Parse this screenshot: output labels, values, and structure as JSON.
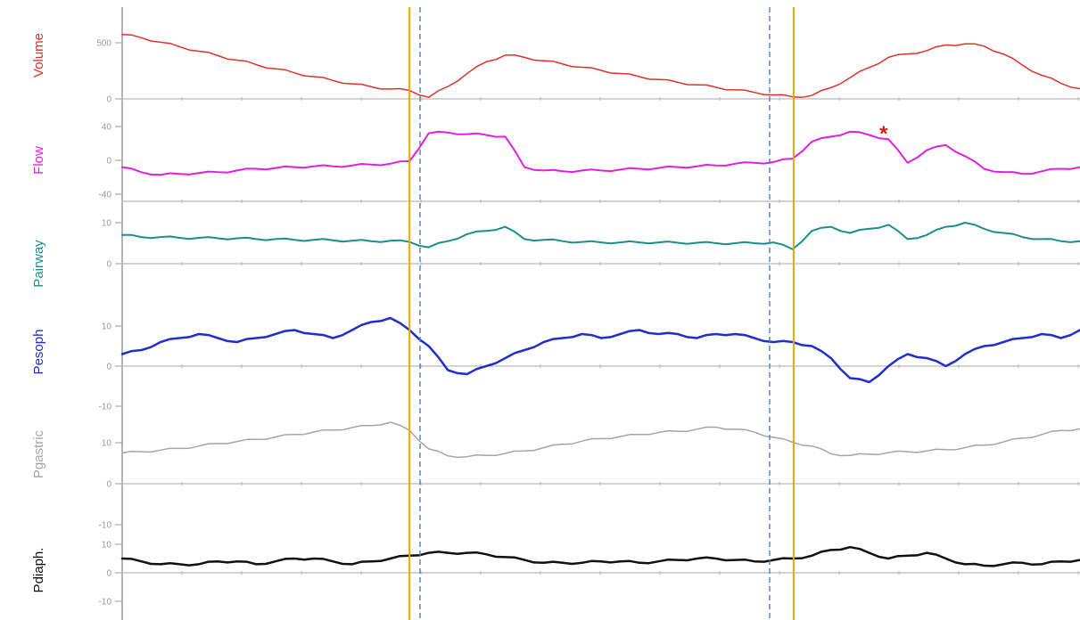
{
  "chart_data": {
    "type": "line",
    "x": [
      0,
      0.02,
      0.04,
      0.06,
      0.08,
      0.1,
      0.12,
      0.14,
      0.16,
      0.18,
      0.2,
      0.22,
      0.24,
      0.26,
      0.28,
      0.3,
      0.32,
      0.34,
      0.36,
      0.38,
      0.4,
      0.42,
      0.44,
      0.46,
      0.48,
      0.5,
      0.52,
      0.54,
      0.56,
      0.58,
      0.6,
      0.62,
      0.64,
      0.66,
      0.68,
      0.7,
      0.72,
      0.74,
      0.76,
      0.78,
      0.8,
      0.82,
      0.84,
      0.86,
      0.88,
      0.9,
      0.92,
      0.94,
      0.96,
      0.98,
      1
    ],
    "series": [
      {
        "name": "Volume",
        "color": "#e0302a",
        "stroke_width": 1.5,
        "values": [
          574,
          545,
          505,
          465,
          425,
          385,
          345,
          305,
          268,
          232,
          198,
          164,
          134,
          108,
          88,
          75,
          14,
          110,
          225,
          330,
          390,
          370,
          340,
          310,
          282,
          254,
          226,
          198,
          172,
          148,
          125,
          103,
          80,
          58,
          36,
          18,
          30,
          100,
          190,
          280,
          370,
          400,
          430,
          480,
          490,
          470,
          400,
          300,
          210,
          140,
          90
        ],
        "ticks": [
          {
            "v": 0,
            "label": "0"
          },
          {
            "v": 500,
            "label": "500"
          }
        ]
      },
      {
        "name": "Flow",
        "color": "#e020e0",
        "stroke_width": 2,
        "values": [
          -8,
          -14,
          -17,
          -16,
          -15,
          -14,
          -12,
          -10,
          -9,
          -8,
          -7,
          -7,
          -6,
          -5,
          -4,
          -1,
          32,
          33,
          31,
          30,
          28,
          -8,
          -12,
          -13,
          -12,
          -12,
          -11,
          -10,
          -9,
          -8,
          -7,
          -6,
          -4,
          -3,
          -2,
          2,
          22,
          28,
          34,
          30,
          25,
          -3,
          12,
          18,
          5,
          -10,
          -14,
          -16,
          -13,
          -10,
          -8
        ],
        "ticks": [
          {
            "v": -40,
            "label": "-40"
          },
          {
            "v": 0,
            "label": "0"
          },
          {
            "v": 40,
            "label": "40"
          }
        ]
      },
      {
        "name": "Pairway",
        "color": "#1a8f8a",
        "stroke_width": 2,
        "values": [
          7,
          6.5,
          6.5,
          6.3,
          6.3,
          6.2,
          6.2,
          6,
          6,
          5.8,
          5.8,
          5.7,
          5.6,
          5.5,
          5.6,
          5.3,
          4,
          5.5,
          7.2,
          8,
          9,
          6,
          5.8,
          5.5,
          5.3,
          5.2,
          5.2,
          5.2,
          5.2,
          5.1,
          5.1,
          5,
          5,
          5,
          5.2,
          3.5,
          8,
          9,
          7.5,
          8.5,
          9.5,
          6,
          7,
          9,
          10,
          8.5,
          7.5,
          6.5,
          6,
          5.5,
          5.5
        ],
        "ticks": [
          {
            "v": 0,
            "label": "0"
          },
          {
            "v": 10,
            "label": "10"
          }
        ]
      },
      {
        "name": "Pesoph",
        "color": "#1f2fcc",
        "stroke_width": 2.5,
        "values": [
          3,
          4,
          6,
          7,
          8,
          7,
          6,
          7,
          8,
          9,
          8,
          7,
          9,
          11,
          12,
          9,
          5,
          -1,
          -2,
          0,
          2,
          4,
          6,
          7,
          8,
          7,
          8,
          9,
          8,
          8,
          7,
          8,
          8,
          7,
          6,
          6,
          5,
          2,
          -3,
          -4,
          0,
          3,
          2,
          0,
          3,
          5,
          6,
          7,
          8,
          7,
          9
        ],
        "ticks": [
          {
            "v": 0,
            "label": "0"
          },
          {
            "v": 10,
            "label": "10"
          },
          {
            "v": -10,
            "label": "-10"
          }
        ]
      },
      {
        "name": "Pgastric",
        "color": "#a6a6a6",
        "stroke_width": 1.5,
        "values": [
          7.5,
          7.8,
          8.2,
          8.6,
          9.2,
          9.8,
          10.3,
          10.8,
          11.4,
          12,
          12.6,
          13.1,
          13.7,
          14.2,
          15,
          13,
          8.5,
          6.8,
          6.6,
          6.9,
          7.4,
          8,
          8.8,
          9.6,
          10.4,
          11,
          11.5,
          12,
          12.5,
          12.8,
          13.3,
          13.8,
          13.3,
          12.6,
          11.3,
          10.1,
          9.2,
          7.3,
          6.9,
          7.2,
          7.6,
          7.8,
          8,
          8.3,
          8.8,
          9.4,
          10.2,
          11.1,
          12,
          13,
          13.4
        ],
        "ticks": [
          {
            "v": 0,
            "label": "0"
          },
          {
            "v": 10,
            "label": "10"
          },
          {
            "v": -10,
            "label": "-10"
          }
        ]
      },
      {
        "name": "Pdiaph.",
        "color": "#111111",
        "stroke_width": 2.5,
        "values": [
          5,
          4,
          3,
          3,
          3,
          4,
          4,
          3,
          4,
          5,
          5,
          4,
          3,
          4,
          5,
          6,
          7,
          7,
          7,
          6.5,
          5.5,
          4.5,
          3.5,
          3.5,
          3.5,
          4,
          4,
          3.5,
          4,
          4.5,
          5,
          5,
          4.5,
          4,
          4.5,
          5,
          6,
          8,
          9,
          7,
          5,
          6,
          7,
          5,
          3,
          2.5,
          3,
          3.5,
          3,
          4,
          4.5
        ],
        "ticks": [
          {
            "v": -10,
            "label": "-10"
          },
          {
            "v": 0,
            "label": "0"
          },
          {
            "v": 10,
            "label": "10"
          }
        ]
      }
    ],
    "markers": [
      {
        "x": 0.3,
        "color": "#e6a800",
        "style": "solid"
      },
      {
        "x": 0.311,
        "color": "#4b7fc4",
        "style": "dashed"
      },
      {
        "x": 0.676,
        "color": "#4b7fc4",
        "style": "dashed"
      },
      {
        "x": 0.701,
        "color": "#e6a800",
        "style": "solid"
      }
    ],
    "annotations": [
      {
        "text": "*",
        "series": "Flow",
        "x": 0.795,
        "color": "#d62020"
      }
    ]
  }
}
